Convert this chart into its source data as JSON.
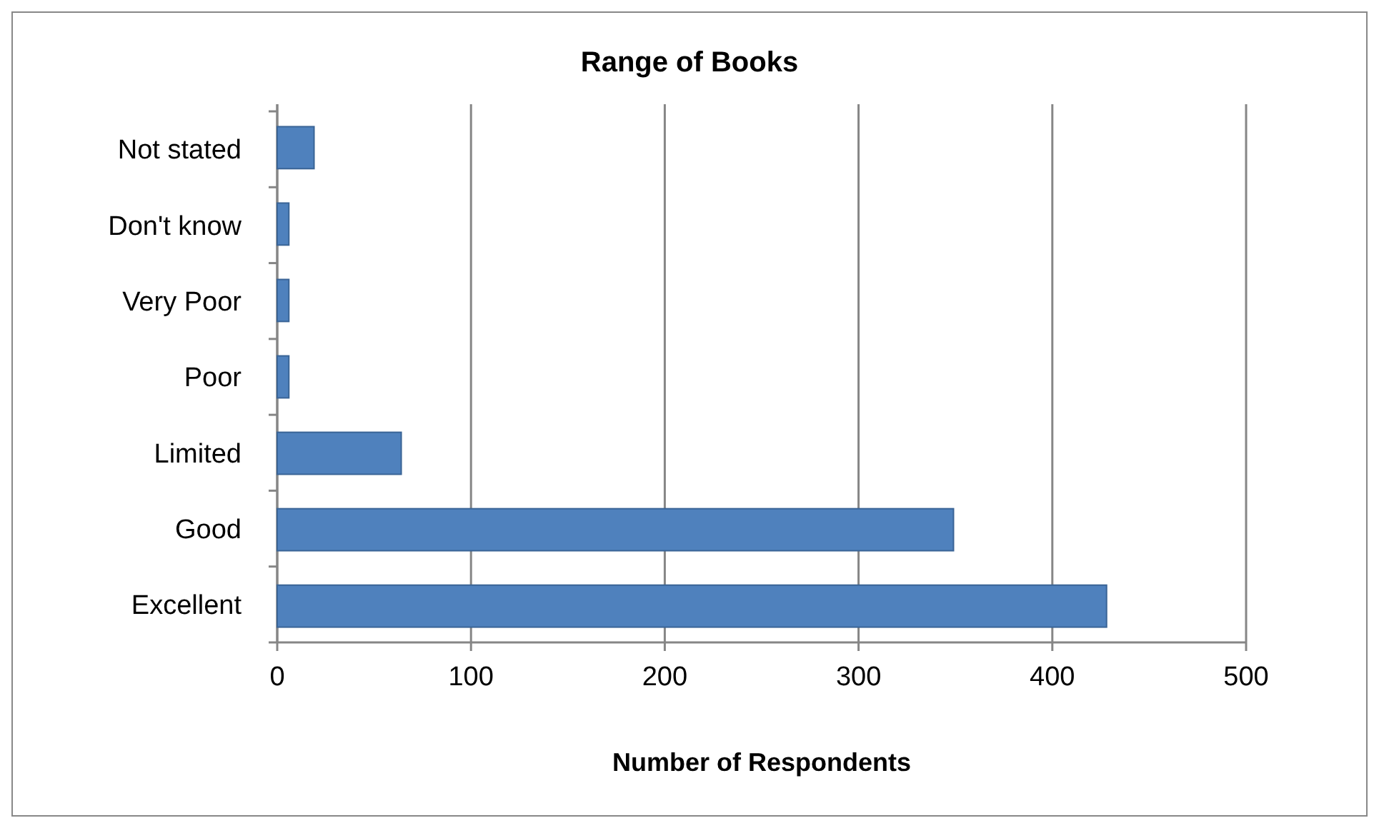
{
  "chart_data": {
    "type": "bar",
    "orientation": "horizontal",
    "title": "Range of Books",
    "xlabel": "Number of Respondents",
    "categories": [
      "Not stated",
      "Don't know",
      "Very Poor",
      "Poor",
      "Limited",
      "Good",
      "Excellent"
    ],
    "values": [
      19,
      6,
      6,
      6,
      64,
      349,
      428
    ],
    "color": "#4f81bd",
    "xlim": [
      0,
      500
    ],
    "xticks": [
      0,
      100,
      200,
      300,
      400,
      500
    ],
    "grid": "x"
  }
}
